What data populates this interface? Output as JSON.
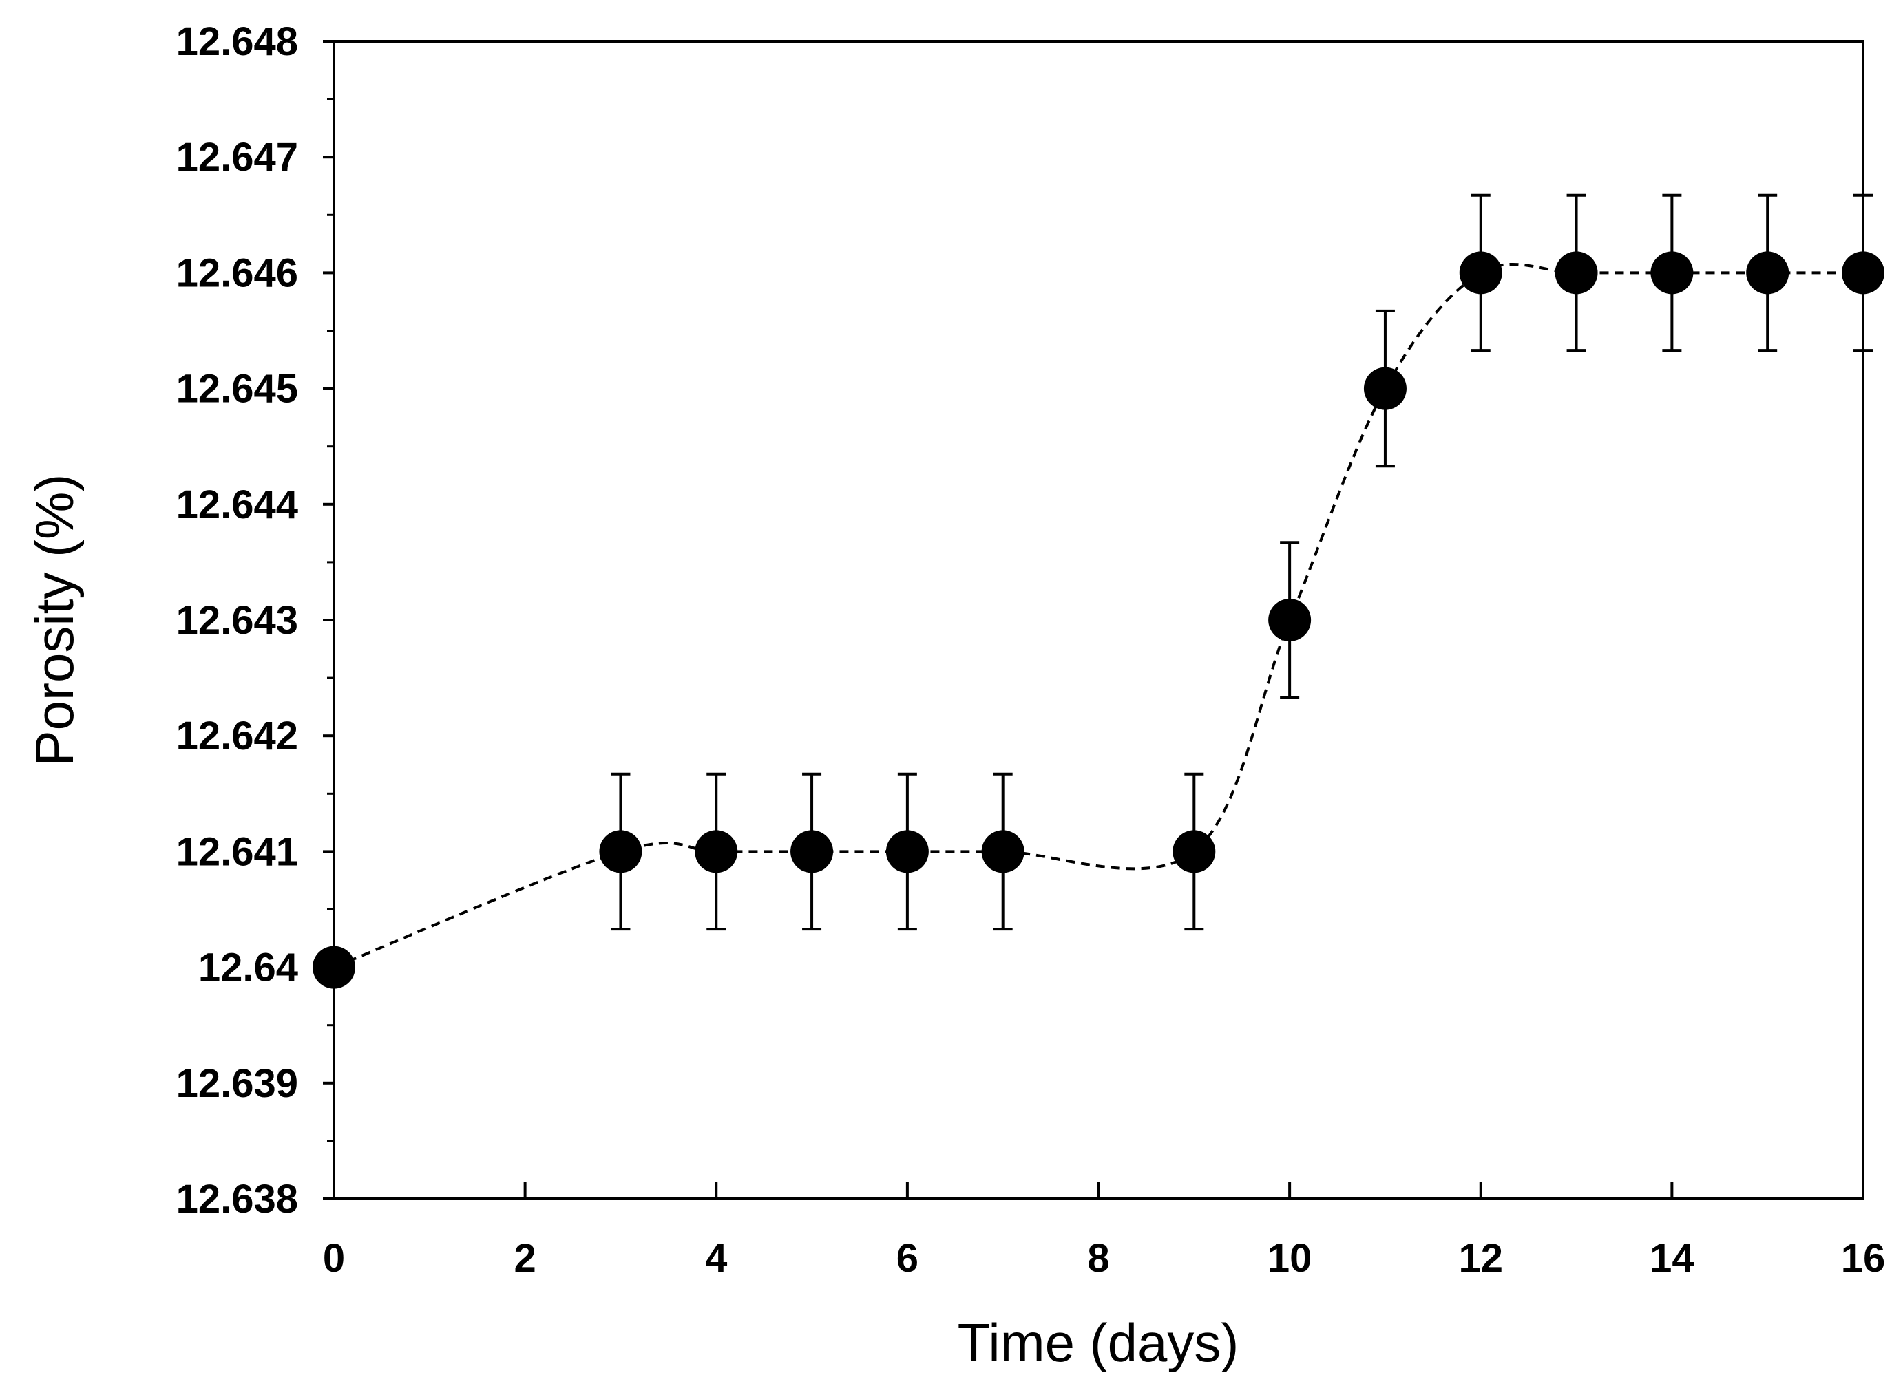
{
  "chart_data": {
    "type": "line",
    "title": "",
    "xlabel": "Time (days)",
    "ylabel": "Porosity (%)",
    "xlim": [
      0,
      16
    ],
    "ylim": [
      12.638,
      12.648
    ],
    "x_ticks": [
      0,
      2,
      4,
      6,
      8,
      10,
      12,
      14,
      16
    ],
    "x_tick_labels": [
      "0",
      "2",
      "4",
      "6",
      "8",
      "10",
      "12",
      "14",
      "16"
    ],
    "y_ticks": [
      12.638,
      12.639,
      12.64,
      12.641,
      12.642,
      12.643,
      12.644,
      12.645,
      12.646,
      12.647,
      12.648
    ],
    "y_tick_labels": [
      "12.638",
      "12.639",
      "12.64",
      "12.641",
      "12.642",
      "12.643",
      "12.644",
      "12.645",
      "12.646",
      "12.647",
      "12.648"
    ],
    "grid": false,
    "series": [
      {
        "name": "Porosity",
        "x": [
          0,
          3,
          4,
          5,
          6,
          7,
          9,
          10,
          11,
          12,
          13,
          14,
          15,
          16
        ],
        "y": [
          12.64,
          12.641,
          12.641,
          12.641,
          12.641,
          12.641,
          12.641,
          12.643,
          12.645,
          12.646,
          12.646,
          12.646,
          12.646,
          12.646
        ],
        "error": [
          0,
          0.00067,
          0.00067,
          0.00067,
          0.00067,
          0.00067,
          0.00067,
          0.00067,
          0.00067,
          0.00067,
          0.00067,
          0.00067,
          0.00067,
          0.00067
        ],
        "marker": "filled-circle",
        "line_style": "dashed-smooth",
        "color": "#000000"
      }
    ]
  }
}
